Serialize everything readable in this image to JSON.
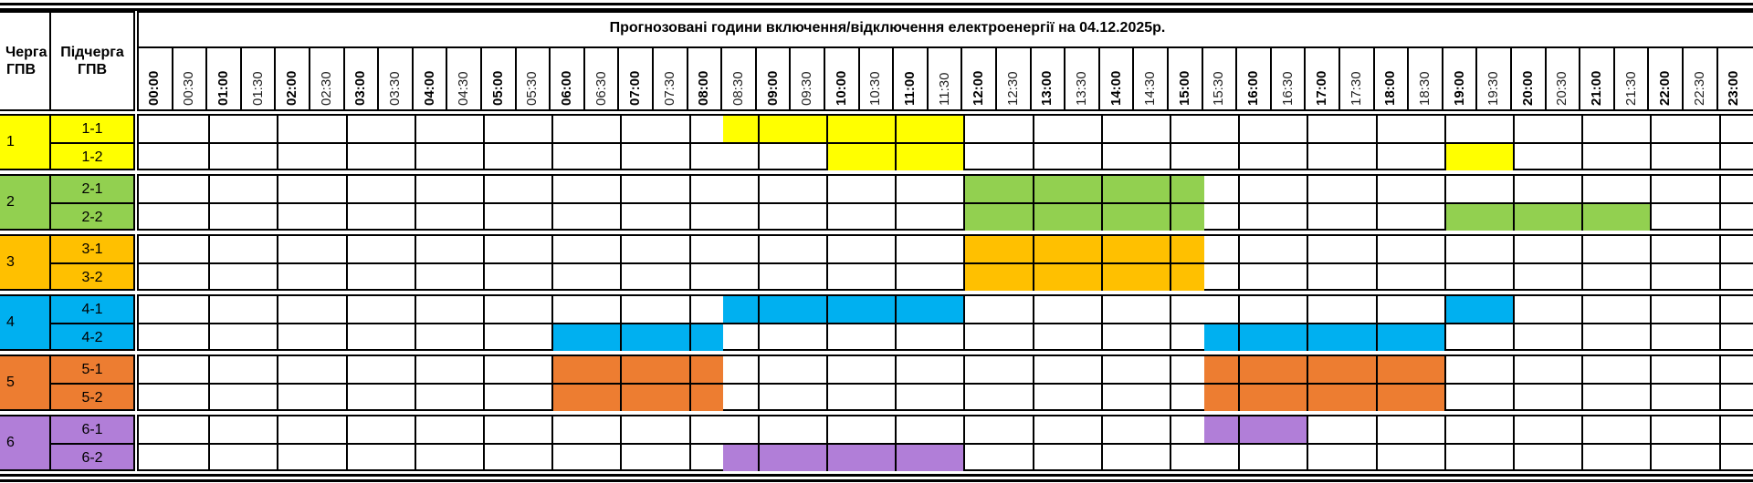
{
  "header": {
    "queue_label": "Черга ГПВ",
    "subqueue_label": "Підчерга ГПВ",
    "title": "Прогнозовані години включення/відключення електроенергії на 04.12.2025р."
  },
  "time_labels": [
    "00:00",
    "00:30",
    "01:00",
    "01:30",
    "02:00",
    "02:30",
    "03:00",
    "03:30",
    "04:00",
    "04:30",
    "05:00",
    "05:30",
    "06:00",
    "06:30",
    "07:00",
    "07:30",
    "08:00",
    "08:30",
    "09:00",
    "09:30",
    "10:00",
    "10:30",
    "11:00",
    "11:30",
    "12:00",
    "12:30",
    "13:00",
    "13:30",
    "14:00",
    "14:30",
    "15:00",
    "15:30",
    "16:00",
    "16:30",
    "17:00",
    "17:30",
    "18:00",
    "18:30",
    "19:00",
    "19:30",
    "20:00",
    "20:30",
    "21:00",
    "21:30",
    "22:00",
    "22:30",
    "23:00"
  ],
  "groups": [
    {
      "label": "1",
      "color": "#FFFF00",
      "subgroups": [
        {
          "label": "1-1",
          "outages": [
            [
              "08:30",
              "12:00"
            ]
          ]
        },
        {
          "label": "1-2",
          "outages": [
            [
              "10:00",
              "12:00"
            ],
            [
              "19:00",
              "20:00"
            ]
          ]
        }
      ]
    },
    {
      "label": "2",
      "color": "#92D050",
      "subgroups": [
        {
          "label": "2-1",
          "outages": [
            [
              "12:00",
              "15:30"
            ]
          ]
        },
        {
          "label": "2-2",
          "outages": [
            [
              "12:00",
              "15:30"
            ],
            [
              "19:00",
              "22:00"
            ]
          ]
        }
      ]
    },
    {
      "label": "3",
      "color": "#FFC000",
      "subgroups": [
        {
          "label": "3-1",
          "outages": [
            [
              "12:00",
              "15:30"
            ]
          ]
        },
        {
          "label": "3-2",
          "outages": [
            [
              "12:00",
              "15:30"
            ]
          ]
        }
      ]
    },
    {
      "label": "4",
      "color": "#00B0F0",
      "subgroups": [
        {
          "label": "4-1",
          "outages": [
            [
              "08:30",
              "12:00"
            ],
            [
              "19:00",
              "20:00"
            ]
          ]
        },
        {
          "label": "4-2",
          "outages": [
            [
              "06:00",
              "08:30"
            ],
            [
              "15:30",
              "19:00"
            ]
          ]
        }
      ]
    },
    {
      "label": "5",
      "color": "#ED7D31",
      "subgroups": [
        {
          "label": "5-1",
          "outages": [
            [
              "06:00",
              "08:30"
            ],
            [
              "15:30",
              "19:00"
            ]
          ]
        },
        {
          "label": "5-2",
          "outages": [
            [
              "06:00",
              "08:30"
            ],
            [
              "15:30",
              "19:00"
            ]
          ]
        }
      ]
    },
    {
      "label": "6",
      "color": "#B17ED8",
      "subgroups": [
        {
          "label": "6-1",
          "outages": [
            [
              "15:30",
              "17:00"
            ]
          ]
        },
        {
          "label": "6-2",
          "outages": [
            [
              "08:30",
              "12:00"
            ]
          ]
        }
      ]
    }
  ]
}
